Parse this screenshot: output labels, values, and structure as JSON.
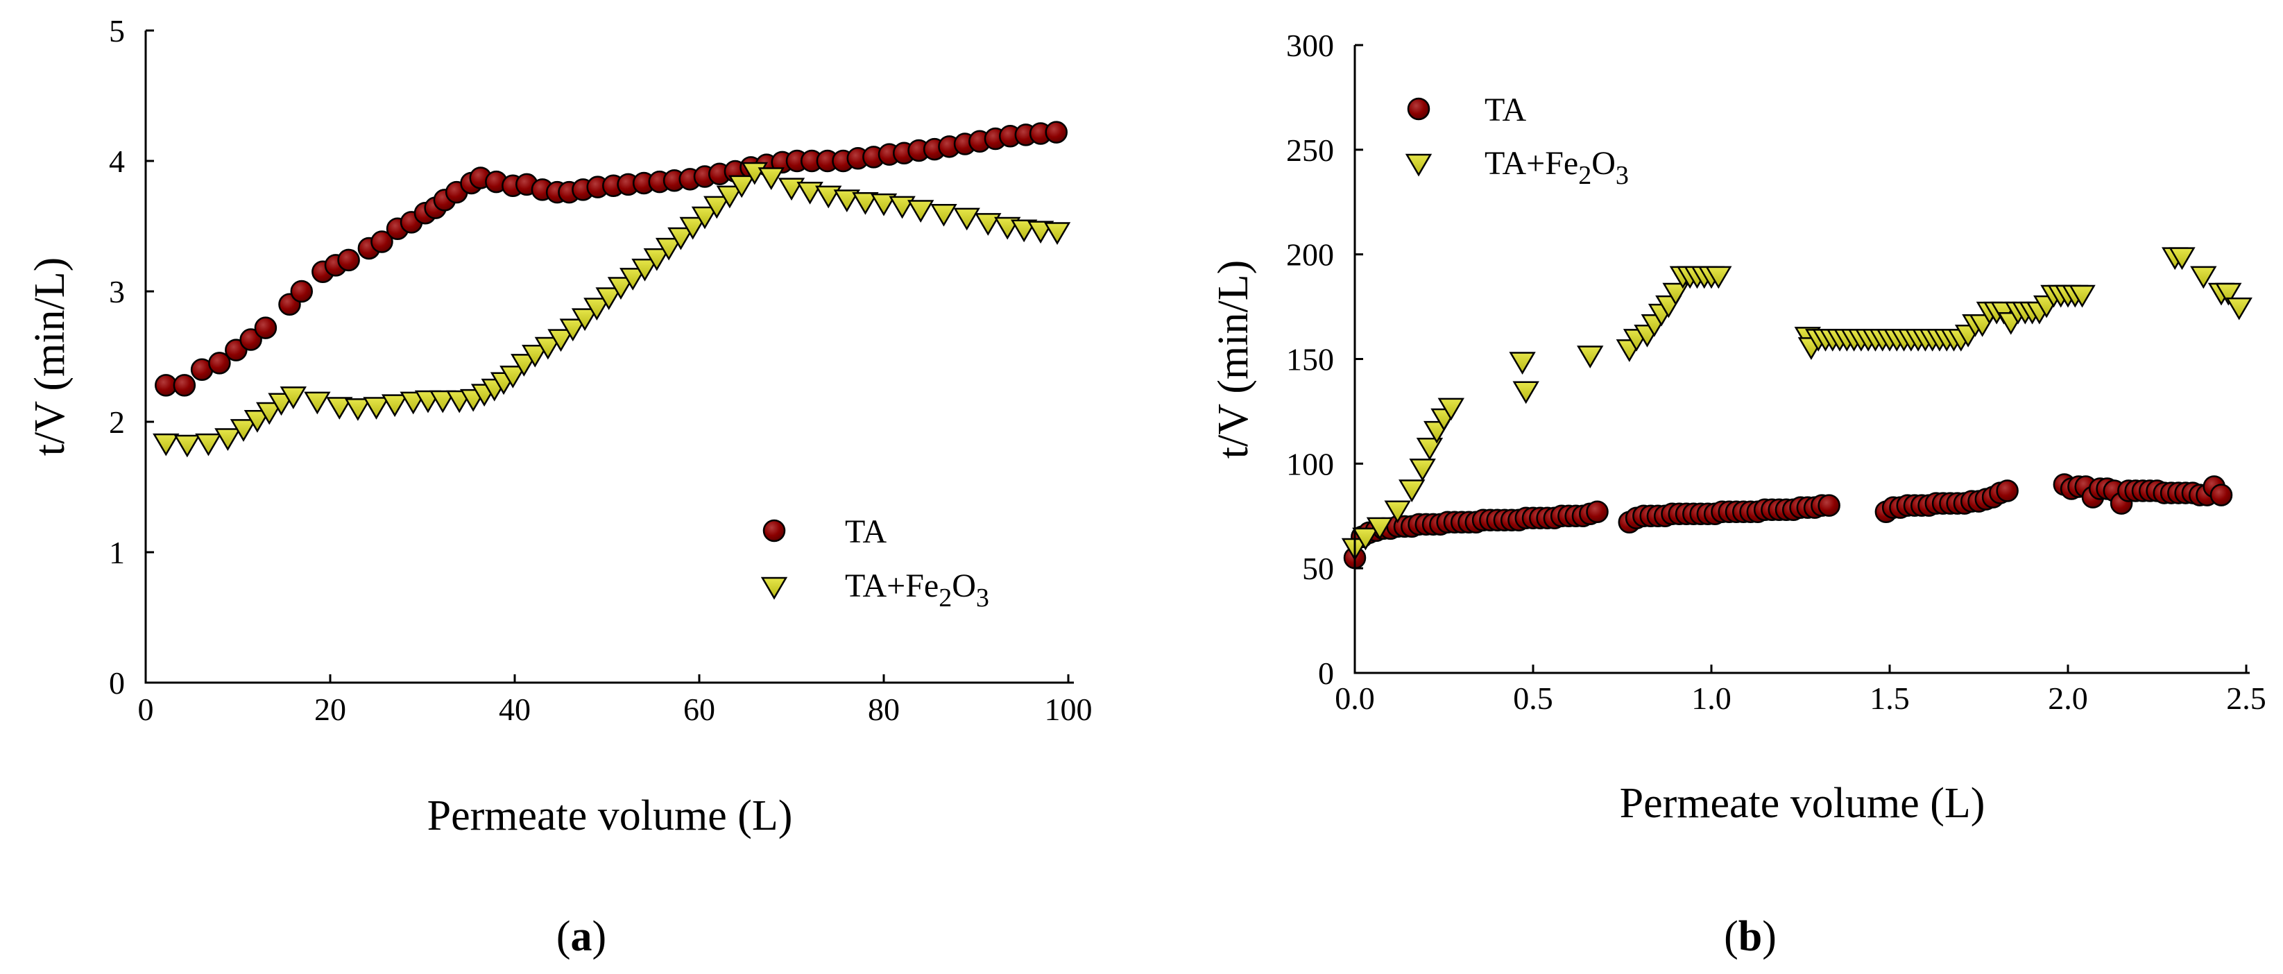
{
  "chart_data": [
    {
      "type": "scatter",
      "panel": "(a)",
      "panel_letter": "a",
      "xlabel": "Permeate volume (L)",
      "ylabel": "t/V (min/L)",
      "xlim": [
        0,
        100
      ],
      "ylim": [
        0,
        5
      ],
      "xticks": [
        0,
        20,
        40,
        60,
        80,
        100
      ],
      "yticks": [
        0,
        1,
        2,
        3,
        4,
        5
      ],
      "xtick_labels": [
        "0",
        "20",
        "40",
        "60",
        "80",
        "100"
      ],
      "ytick_labels": [
        "0",
        "1",
        "2",
        "3",
        "4",
        "5"
      ],
      "grid": false,
      "legend_position": "bottom-right",
      "series": [
        {
          "name": "TA",
          "marker": "circle",
          "color": "#8B0000",
          "x": [
            2.2,
            4.2,
            6.1,
            8.0,
            9.8,
            11.4,
            13.0,
            15.6,
            16.9,
            19.2,
            20.6,
            22.0,
            24.2,
            25.6,
            27.3,
            28.8,
            30.3,
            31.4,
            32.4,
            33.7,
            35.3,
            36.3,
            38.0,
            39.8,
            41.3,
            43.0,
            44.6,
            45.9,
            47.4,
            49.0,
            50.7,
            52.3,
            54.0,
            55.7,
            57.3,
            59.0,
            60.6,
            62.2,
            63.9,
            65.6,
            67.3,
            69.0,
            70.6,
            72.2,
            73.9,
            75.6,
            77.2,
            78.9,
            80.6,
            82.2,
            83.8,
            85.5,
            87.1,
            88.8,
            90.4,
            92.1,
            93.7,
            95.4,
            97.0,
            98.7
          ],
          "y": [
            2.28,
            2.28,
            2.4,
            2.45,
            2.55,
            2.63,
            2.72,
            2.9,
            3.0,
            3.15,
            3.2,
            3.24,
            3.33,
            3.38,
            3.48,
            3.53,
            3.6,
            3.64,
            3.7,
            3.76,
            3.83,
            3.87,
            3.84,
            3.81,
            3.82,
            3.78,
            3.76,
            3.76,
            3.78,
            3.8,
            3.81,
            3.82,
            3.83,
            3.84,
            3.85,
            3.86,
            3.88,
            3.9,
            3.92,
            3.95,
            3.97,
            3.99,
            4.0,
            4.0,
            4.0,
            4.0,
            4.02,
            4.03,
            4.05,
            4.06,
            4.08,
            4.09,
            4.11,
            4.13,
            4.15,
            4.17,
            4.19,
            4.2,
            4.21,
            4.22
          ]
        },
        {
          "name": "TA+Fe2O3",
          "marker": "triangle-down",
          "color": "#D4D42A",
          "x": [
            2.2,
            4.5,
            6.8,
            8.9,
            10.6,
            12.1,
            13.4,
            14.7,
            16.0,
            18.6,
            21.0,
            23.0,
            25.0,
            27.0,
            29.0,
            30.6,
            32.2,
            34.0,
            35.5,
            36.7,
            37.8,
            38.8,
            39.8,
            41.0,
            42.2,
            43.6,
            45.0,
            46.3,
            47.6,
            48.9,
            50.2,
            51.5,
            52.8,
            54.1,
            55.4,
            56.7,
            58.0,
            59.3,
            60.6,
            61.9,
            63.3,
            64.6,
            66.0,
            67.8,
            70.0,
            72.0,
            74.0,
            76.0,
            78.0,
            80.0,
            82.0,
            84.0,
            86.5,
            89.0,
            91.3,
            93.4,
            95.2,
            97.0,
            98.8
          ],
          "y": [
            1.84,
            1.83,
            1.84,
            1.88,
            1.95,
            2.02,
            2.08,
            2.15,
            2.2,
            2.16,
            2.12,
            2.11,
            2.12,
            2.14,
            2.16,
            2.17,
            2.17,
            2.17,
            2.18,
            2.22,
            2.26,
            2.31,
            2.36,
            2.45,
            2.52,
            2.58,
            2.64,
            2.72,
            2.8,
            2.88,
            2.96,
            3.04,
            3.11,
            3.18,
            3.26,
            3.34,
            3.42,
            3.5,
            3.58,
            3.66,
            3.74,
            3.82,
            3.92,
            3.88,
            3.8,
            3.77,
            3.74,
            3.71,
            3.69,
            3.68,
            3.66,
            3.63,
            3.6,
            3.57,
            3.53,
            3.5,
            3.48,
            3.47,
            3.46
          ]
        }
      ],
      "legend": [
        {
          "label": "TA",
          "marker": "circle"
        },
        {
          "label_main": "TA+Fe",
          "sub1": "2",
          "label_mid": "O",
          "sub2": "3",
          "marker": "triangle-down"
        }
      ]
    },
    {
      "type": "scatter",
      "panel": "(b)",
      "panel_letter": "b",
      "xlabel": "Permeate volume (L)",
      "ylabel": "t/V (min/L)",
      "xlim": [
        0,
        2.5
      ],
      "ylim": [
        0,
        300
      ],
      "xticks": [
        0,
        0.5,
        1.0,
        1.5,
        2.0,
        2.5
      ],
      "yticks": [
        0,
        50,
        100,
        150,
        200,
        250,
        300
      ],
      "xtick_labels": [
        "0.0",
        "0.5",
        "1.0",
        "1.5",
        "2.0",
        "2.5"
      ],
      "ytick_labels": [
        "0",
        "50",
        "100",
        "150",
        "200",
        "250",
        "300"
      ],
      "grid": false,
      "legend_position": "top-left",
      "series": [
        {
          "name": "TA",
          "marker": "circle",
          "color": "#8B0000",
          "x": [
            0.0,
            0.02,
            0.04,
            0.06,
            0.08,
            0.1,
            0.12,
            0.14,
            0.16,
            0.18,
            0.2,
            0.22,
            0.24,
            0.26,
            0.28,
            0.3,
            0.32,
            0.34,
            0.36,
            0.38,
            0.4,
            0.42,
            0.44,
            0.46,
            0.48,
            0.5,
            0.52,
            0.54,
            0.56,
            0.58,
            0.6,
            0.62,
            0.64,
            0.66,
            0.68,
            0.77,
            0.79,
            0.81,
            0.83,
            0.85,
            0.87,
            0.89,
            0.91,
            0.93,
            0.95,
            0.97,
            0.99,
            1.01,
            1.03,
            1.05,
            1.07,
            1.09,
            1.11,
            1.13,
            1.15,
            1.17,
            1.19,
            1.21,
            1.23,
            1.25,
            1.27,
            1.29,
            1.31,
            1.33,
            1.49,
            1.51,
            1.53,
            1.55,
            1.57,
            1.59,
            1.61,
            1.63,
            1.65,
            1.67,
            1.69,
            1.71,
            1.73,
            1.75,
            1.77,
            1.79,
            1.81,
            1.83,
            1.99,
            2.01,
            2.03,
            2.05,
            2.07,
            2.09,
            2.11,
            2.13,
            2.15,
            2.17,
            2.19,
            2.21,
            2.23,
            2.25,
            2.27,
            2.29,
            2.31,
            2.33,
            2.35,
            2.37,
            2.39,
            2.41,
            2.43
          ],
          "y": [
            55,
            65,
            67,
            68,
            69,
            69,
            70,
            70,
            70,
            71,
            71,
            71,
            71,
            72,
            72,
            72,
            72,
            72,
            73,
            73,
            73,
            73,
            73,
            73,
            74,
            74,
            74,
            74,
            74,
            75,
            75,
            75,
            75,
            76,
            77,
            72,
            74,
            75,
            75,
            75,
            75,
            76,
            76,
            76,
            76,
            76,
            76,
            76,
            77,
            77,
            77,
            77,
            77,
            77,
            78,
            78,
            78,
            78,
            78,
            79,
            79,
            79,
            80,
            80,
            77,
            79,
            79,
            80,
            80,
            80,
            80,
            81,
            81,
            81,
            81,
            81,
            82,
            82,
            83,
            84,
            86,
            87,
            90,
            88,
            89,
            89,
            84,
            88,
            88,
            87,
            81,
            87,
            87,
            87,
            87,
            87,
            86,
            86,
            86,
            86,
            86,
            85,
            85,
            89,
            85
          ]
        },
        {
          "name": "TA+Fe2O3",
          "marker": "triangle-down",
          "color": "#D4D42A",
          "x": [
            0.0,
            0.03,
            0.07,
            0.12,
            0.16,
            0.19,
            0.21,
            0.23,
            0.25,
            0.27,
            0.47,
            0.48,
            0.66,
            0.77,
            0.79,
            0.82,
            0.84,
            0.86,
            0.88,
            0.9,
            0.92,
            0.94,
            0.96,
            0.98,
            1.0,
            1.02,
            1.27,
            1.28,
            1.3,
            1.32,
            1.34,
            1.36,
            1.38,
            1.4,
            1.42,
            1.44,
            1.46,
            1.48,
            1.5,
            1.52,
            1.54,
            1.56,
            1.58,
            1.6,
            1.62,
            1.64,
            1.66,
            1.68,
            1.7,
            1.72,
            1.74,
            1.76,
            1.78,
            1.8,
            1.82,
            1.84,
            1.86,
            1.88,
            1.9,
            1.92,
            1.94,
            1.96,
            1.98,
            2.0,
            2.02,
            2.04,
            2.3,
            2.32,
            2.38,
            2.43,
            2.45,
            2.48
          ],
          "y": [
            60,
            65,
            70,
            78,
            88,
            98,
            108,
            116,
            122,
            127,
            149,
            135,
            152,
            155,
            160,
            162,
            167,
            172,
            176,
            182,
            190,
            190,
            190,
            190,
            190,
            190,
            161,
            156,
            160,
            160,
            160,
            160,
            160,
            160,
            160,
            160,
            160,
            160,
            160,
            160,
            160,
            160,
            160,
            160,
            160,
            160,
            160,
            160,
            160,
            162,
            167,
            167,
            173,
            173,
            173,
            168,
            173,
            173,
            173,
            173,
            176,
            181,
            181,
            181,
            181,
            181,
            199,
            199,
            190,
            182,
            182,
            175
          ]
        }
      ],
      "legend": [
        {
          "label": "TA",
          "marker": "circle"
        },
        {
          "label_main": "TA+Fe",
          "sub1": "2",
          "label_mid": "O",
          "sub2": "3",
          "marker": "triangle-down"
        }
      ]
    }
  ]
}
